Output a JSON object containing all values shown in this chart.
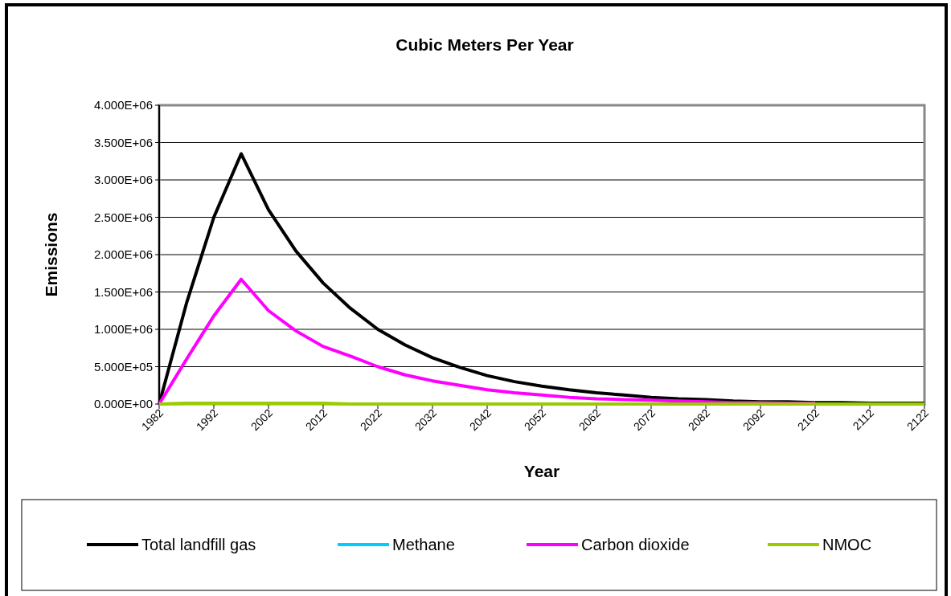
{
  "chart_data": {
    "type": "line",
    "title": "Cubic Meters Per Year",
    "xlabel": "Year",
    "ylabel": "Emissions",
    "x": [
      1982,
      1987,
      1992,
      1997,
      2002,
      2007,
      2012,
      2017,
      2022,
      2027,
      2032,
      2037,
      2042,
      2047,
      2052,
      2057,
      2062,
      2067,
      2072,
      2077,
      2082,
      2087,
      2092,
      2097,
      2102,
      2107,
      2112,
      2117,
      2122
    ],
    "series": [
      {
        "name": "Total landfill gas",
        "color": "#000000",
        "values": [
          0,
          1350000,
          2500000,
          3350000,
          2600000,
          2050000,
          1620000,
          1280000,
          1000000,
          790000,
          620000,
          490000,
          380000,
          300000,
          240000,
          190000,
          150000,
          120000,
          90000,
          70000,
          60000,
          40000,
          30000,
          30000,
          20000,
          20000,
          10000,
          10000,
          10000
        ]
      },
      {
        "name": "Methane",
        "color": "#00ccff",
        "values": [
          null,
          null,
          null,
          null,
          null,
          null,
          null,
          null,
          null,
          null,
          null,
          null,
          null,
          null,
          null,
          null,
          null,
          null,
          null,
          null,
          null,
          null,
          null,
          null,
          null,
          null,
          null,
          null,
          null
        ]
      },
      {
        "name": "Carbon dioxide",
        "color": "#ff00ff",
        "values": [
          0,
          600000,
          1180000,
          1670000,
          1250000,
          980000,
          770000,
          640000,
          500000,
          390000,
          310000,
          250000,
          190000,
          150000,
          120000,
          90000,
          70000,
          60000,
          50000,
          40000,
          30000,
          20000,
          20000,
          10000,
          10000,
          null,
          null,
          null,
          null
        ]
      },
      {
        "name": "NMOC",
        "color": "#99cc00",
        "values": [
          0,
          10000,
          10000,
          10000,
          10000,
          10000,
          10000,
          0,
          0,
          0,
          0,
          0,
          0,
          0,
          0,
          0,
          0,
          0,
          0,
          0,
          0,
          0,
          0,
          0,
          0,
          0,
          0,
          0,
          0
        ]
      }
    ],
    "xlim": [
      1982,
      2122
    ],
    "xticks": [
      1982,
      1992,
      2002,
      2012,
      2022,
      2032,
      2042,
      2052,
      2062,
      2072,
      2082,
      2092,
      2102,
      2112,
      2122
    ],
    "ylim": [
      0,
      4000000
    ],
    "yticks": [
      {
        "value": 0,
        "label": "0.000E+00"
      },
      {
        "value": 500000,
        "label": "5.000E+05"
      },
      {
        "value": 1000000,
        "label": "1.000E+06"
      },
      {
        "value": 1500000,
        "label": "1.500E+06"
      },
      {
        "value": 2000000,
        "label": "2.000E+06"
      },
      {
        "value": 2500000,
        "label": "2.500E+06"
      },
      {
        "value": 3000000,
        "label": "3.000E+06"
      },
      {
        "value": 3500000,
        "label": "3.500E+06"
      },
      {
        "value": 4000000,
        "label": "4.000E+06"
      }
    ],
    "grid": "y",
    "legend": "bottom",
    "marker": "none",
    "line_style": "solid"
  }
}
